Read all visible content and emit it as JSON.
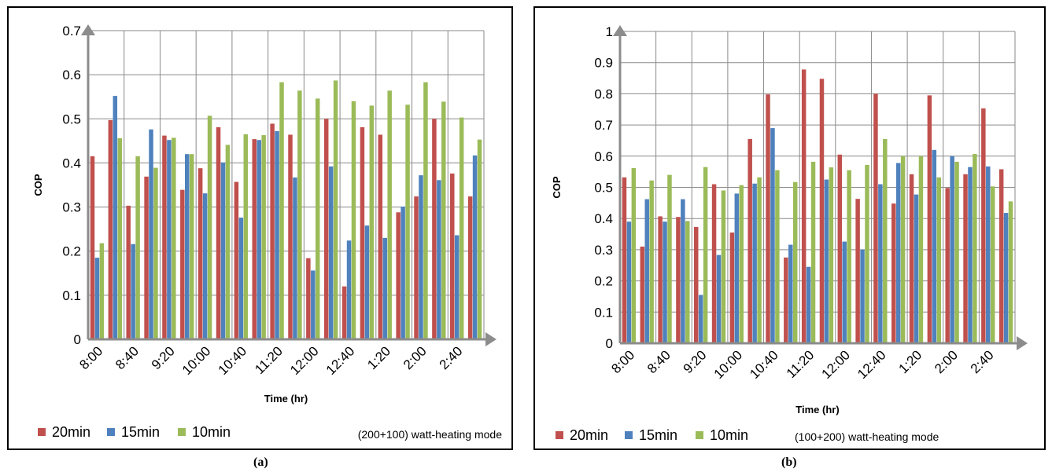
{
  "panels": [
    {
      "caption": "(a)"
    },
    {
      "caption": "(b)"
    }
  ],
  "chart_data": [
    {
      "type": "bar",
      "title": "",
      "xlabel": "Time (hr)",
      "ylabel": "COP",
      "ylim": [
        0,
        0.7
      ],
      "ytick_labels": [
        "0",
        "0.1",
        "0.2",
        "0.3",
        "0.4",
        "0.5",
        "0.6",
        "0.7"
      ],
      "categories": [
        "8:00",
        "8:20",
        "8:40",
        "9:00",
        "9:20",
        "9:40",
        "10:00",
        "10:20",
        "10:40",
        "11:00",
        "11:20",
        "11:40",
        "12:00",
        "12:20",
        "12:40",
        "1:00",
        "1:20",
        "1:40",
        "2:00",
        "2:20",
        "2:40",
        "3:00"
      ],
      "shown_tick_labels": [
        "8:00",
        "8:40",
        "9:20",
        "10:00",
        "10:40",
        "11:20",
        "12:00",
        "12:40",
        "1:20",
        "2:00",
        "2:40"
      ],
      "series": [
        {
          "name": "20min",
          "color": "#c0504d",
          "values": [
            0.415,
            0.497,
            0.303,
            0.369,
            0.462,
            0.339,
            0.388,
            0.481,
            0.357,
            0.454,
            0.489,
            0.464,
            0.184,
            0.5,
            0.12,
            0.481,
            0.464,
            0.288,
            0.324,
            0.5,
            0.376,
            0.324
          ]
        },
        {
          "name": "15min",
          "color": "#4f81bd",
          "values": [
            0.185,
            0.552,
            0.216,
            0.476,
            0.452,
            0.42,
            0.331,
            0.401,
            0.276,
            0.452,
            0.472,
            0.367,
            0.156,
            0.392,
            0.224,
            0.258,
            0.23,
            0.301,
            0.372,
            0.361,
            0.236,
            0.417
          ]
        },
        {
          "name": "10min",
          "color": "#9bbb59",
          "values": [
            0.218,
            0.456,
            0.415,
            0.389,
            0.457,
            0.42,
            0.507,
            0.441,
            0.465,
            0.463,
            0.583,
            0.564,
            0.546,
            0.587,
            0.54,
            0.53,
            0.564,
            0.532,
            0.583,
            0.539,
            0.503,
            0.453
          ]
        }
      ],
      "legend_position": "bottom-left",
      "annotation": "(200+100) watt-heating mode",
      "grid": true
    },
    {
      "type": "bar",
      "title": "",
      "xlabel": "Time (hr)",
      "ylabel": "COP",
      "ylim": [
        0,
        1
      ],
      "ytick_labels": [
        "0",
        "0.1",
        "0.2",
        "0.3",
        "0.4",
        "0.5",
        "0.6",
        "0.7",
        "0.8",
        "0.9",
        "1"
      ],
      "categories": [
        "8:00",
        "8:20",
        "8:40",
        "9:00",
        "9:20",
        "9:40",
        "10:00",
        "10:20",
        "10:40",
        "11:00",
        "11:20",
        "11:40",
        "12:00",
        "12:20",
        "12:40",
        "1:00",
        "1:20",
        "1:40",
        "2:00",
        "2:20",
        "2:40",
        "3:00"
      ],
      "shown_tick_labels": [
        "8:00",
        "8:40",
        "9:20",
        "10:00",
        "10:40",
        "11:20",
        "12:00",
        "12:40",
        "1:20",
        "2:00",
        "2:40"
      ],
      "series": [
        {
          "name": "20min",
          "color": "#c0504d",
          "values": [
            0.532,
            0.31,
            0.407,
            0.405,
            0.373,
            0.51,
            0.355,
            0.655,
            0.798,
            0.275,
            0.878,
            0.848,
            0.605,
            0.463,
            0.8,
            0.448,
            0.542,
            0.795,
            0.498,
            0.542,
            0.753,
            0.558
          ]
        },
        {
          "name": "15min",
          "color": "#4f81bd",
          "values": [
            0.39,
            0.462,
            0.39,
            0.462,
            0.155,
            0.283,
            0.48,
            0.512,
            0.69,
            0.316,
            0.245,
            0.525,
            0.326,
            0.3,
            0.51,
            0.578,
            0.477,
            0.62,
            0.6,
            0.565,
            0.567,
            0.418
          ]
        },
        {
          "name": "10min",
          "color": "#9bbb59",
          "values": [
            0.562,
            0.522,
            0.54,
            0.392,
            0.565,
            0.49,
            0.507,
            0.532,
            0.555,
            0.517,
            0.582,
            0.564,
            0.555,
            0.572,
            0.655,
            0.6,
            0.6,
            0.532,
            0.582,
            0.607,
            0.503,
            0.455
          ]
        }
      ],
      "legend_position": "bottom-left",
      "annotation": "(100+200) watt-heating mode",
      "grid": true
    }
  ]
}
